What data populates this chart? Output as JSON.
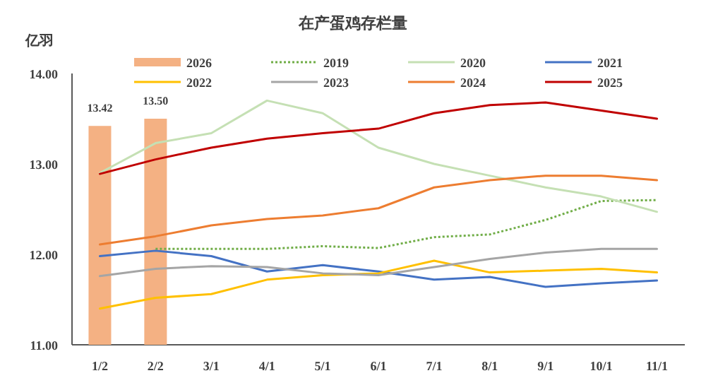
{
  "chart_data": {
    "type": "line",
    "title": "在产蛋鸡存栏量",
    "ylabel": "亿羽",
    "categories": [
      "1/2",
      "2/2",
      "3/1",
      "4/1",
      "5/1",
      "6/1",
      "7/1",
      "8/1",
      "9/1",
      "10/1",
      "11/1"
    ],
    "ylim": [
      11,
      14
    ],
    "yticks": [
      {
        "value": 11,
        "label": "11.00"
      },
      {
        "value": 12,
        "label": "12.00"
      },
      {
        "value": 13,
        "label": "13.00"
      },
      {
        "value": 14,
        "label": "14.00"
      }
    ],
    "grid": false,
    "legend": "top",
    "marker": "none",
    "series": [
      {
        "name": "2026",
        "type": "bar",
        "color": "#f4b183",
        "value_labels": [
          "13.42",
          "13.50",
          null,
          null,
          null,
          null,
          null,
          null,
          null,
          null,
          null
        ],
        "values": [
          13.42,
          13.5,
          null,
          null,
          null,
          null,
          null,
          null,
          null,
          null,
          null
        ]
      },
      {
        "name": "2019",
        "color": "#70ad47",
        "line_style": "dotted",
        "values": [
          null,
          12.06,
          12.06,
          12.06,
          12.09,
          12.07,
          12.19,
          12.22,
          12.38,
          12.59,
          12.6
        ]
      },
      {
        "name": "2020",
        "color": "#c5e0b4",
        "line_style": "solid",
        "values": [
          12.9,
          13.23,
          13.34,
          13.7,
          13.56,
          13.18,
          13.0,
          12.87,
          12.74,
          12.64,
          12.47
        ]
      },
      {
        "name": "2021",
        "color": "#4472c4",
        "line_style": "solid",
        "values": [
          11.98,
          12.04,
          11.98,
          11.81,
          11.88,
          11.81,
          11.72,
          11.75,
          11.64,
          11.68,
          11.71
        ]
      },
      {
        "name": "2022",
        "color": "#ffc000",
        "line_style": "solid",
        "values": [
          11.4,
          11.52,
          11.56,
          11.72,
          11.77,
          11.79,
          11.93,
          11.8,
          11.82,
          11.84,
          11.8
        ]
      },
      {
        "name": "2023",
        "color": "#a5a5a5",
        "line_style": "solid",
        "values": [
          11.76,
          11.84,
          11.87,
          11.86,
          11.79,
          11.77,
          11.86,
          11.95,
          12.02,
          12.06,
          12.06
        ]
      },
      {
        "name": "2024",
        "color": "#ed7d31",
        "line_style": "solid",
        "values": [
          12.11,
          12.2,
          12.32,
          12.39,
          12.43,
          12.51,
          12.74,
          12.82,
          12.87,
          12.87,
          12.82
        ]
      },
      {
        "name": "2025",
        "color": "#c00000",
        "line_style": "solid",
        "values": [
          12.89,
          13.05,
          13.18,
          13.28,
          13.34,
          13.39,
          13.56,
          13.65,
          13.68,
          13.59,
          13.5
        ]
      }
    ]
  }
}
